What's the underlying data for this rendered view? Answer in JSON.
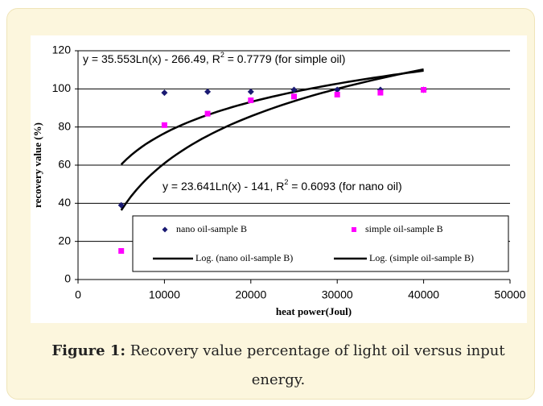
{
  "chart_data": {
    "type": "scatter",
    "xlabel": "heat power(Joul)",
    "ylabel": "recovery value (%)",
    "x": [
      5000,
      10000,
      15000,
      20000,
      25000,
      30000,
      35000,
      40000
    ],
    "series": [
      {
        "name": "nano oil-sample B",
        "color": "#1a1a72",
        "marker": "diamond",
        "values": [
          39,
          98,
          98.5,
          98.5,
          99.5,
          99.5,
          99.5,
          99.5
        ]
      },
      {
        "name": "simple oil-sample B",
        "color": "#ff00ff",
        "marker": "square",
        "values": [
          15,
          81,
          87,
          94,
          96,
          97,
          98,
          99.5
        ]
      }
    ],
    "trendlines": [
      {
        "name": "Log. (nano oil-sample B)",
        "color": "#000000",
        "coefficients": [
          23.641,
          -141
        ],
        "equation": [
          "y = 23.641Ln(x) - 141, R",
          "2",
          " = 0.6093 (for nano oil)"
        ]
      },
      {
        "name": "Log. (simple oil-sample B)",
        "color": "#000000",
        "coefficients": [
          35.553,
          -266.49
        ],
        "equation": [
          "y = 35.553Ln(x) - 266.49, R",
          "2",
          " = 0.7779 (for simple oil)"
        ]
      }
    ],
    "xlim": [
      0,
      50000
    ],
    "xticks": [
      0,
      10000,
      20000,
      30000,
      40000,
      50000
    ],
    "ylim": [
      0,
      120
    ],
    "yticks": [
      0,
      20,
      40,
      60,
      80,
      100,
      120
    ],
    "grid": true,
    "caption": {
      "label": "Figure 1:",
      "text": "Recovery value percentage of light oil versus input energy."
    }
  }
}
